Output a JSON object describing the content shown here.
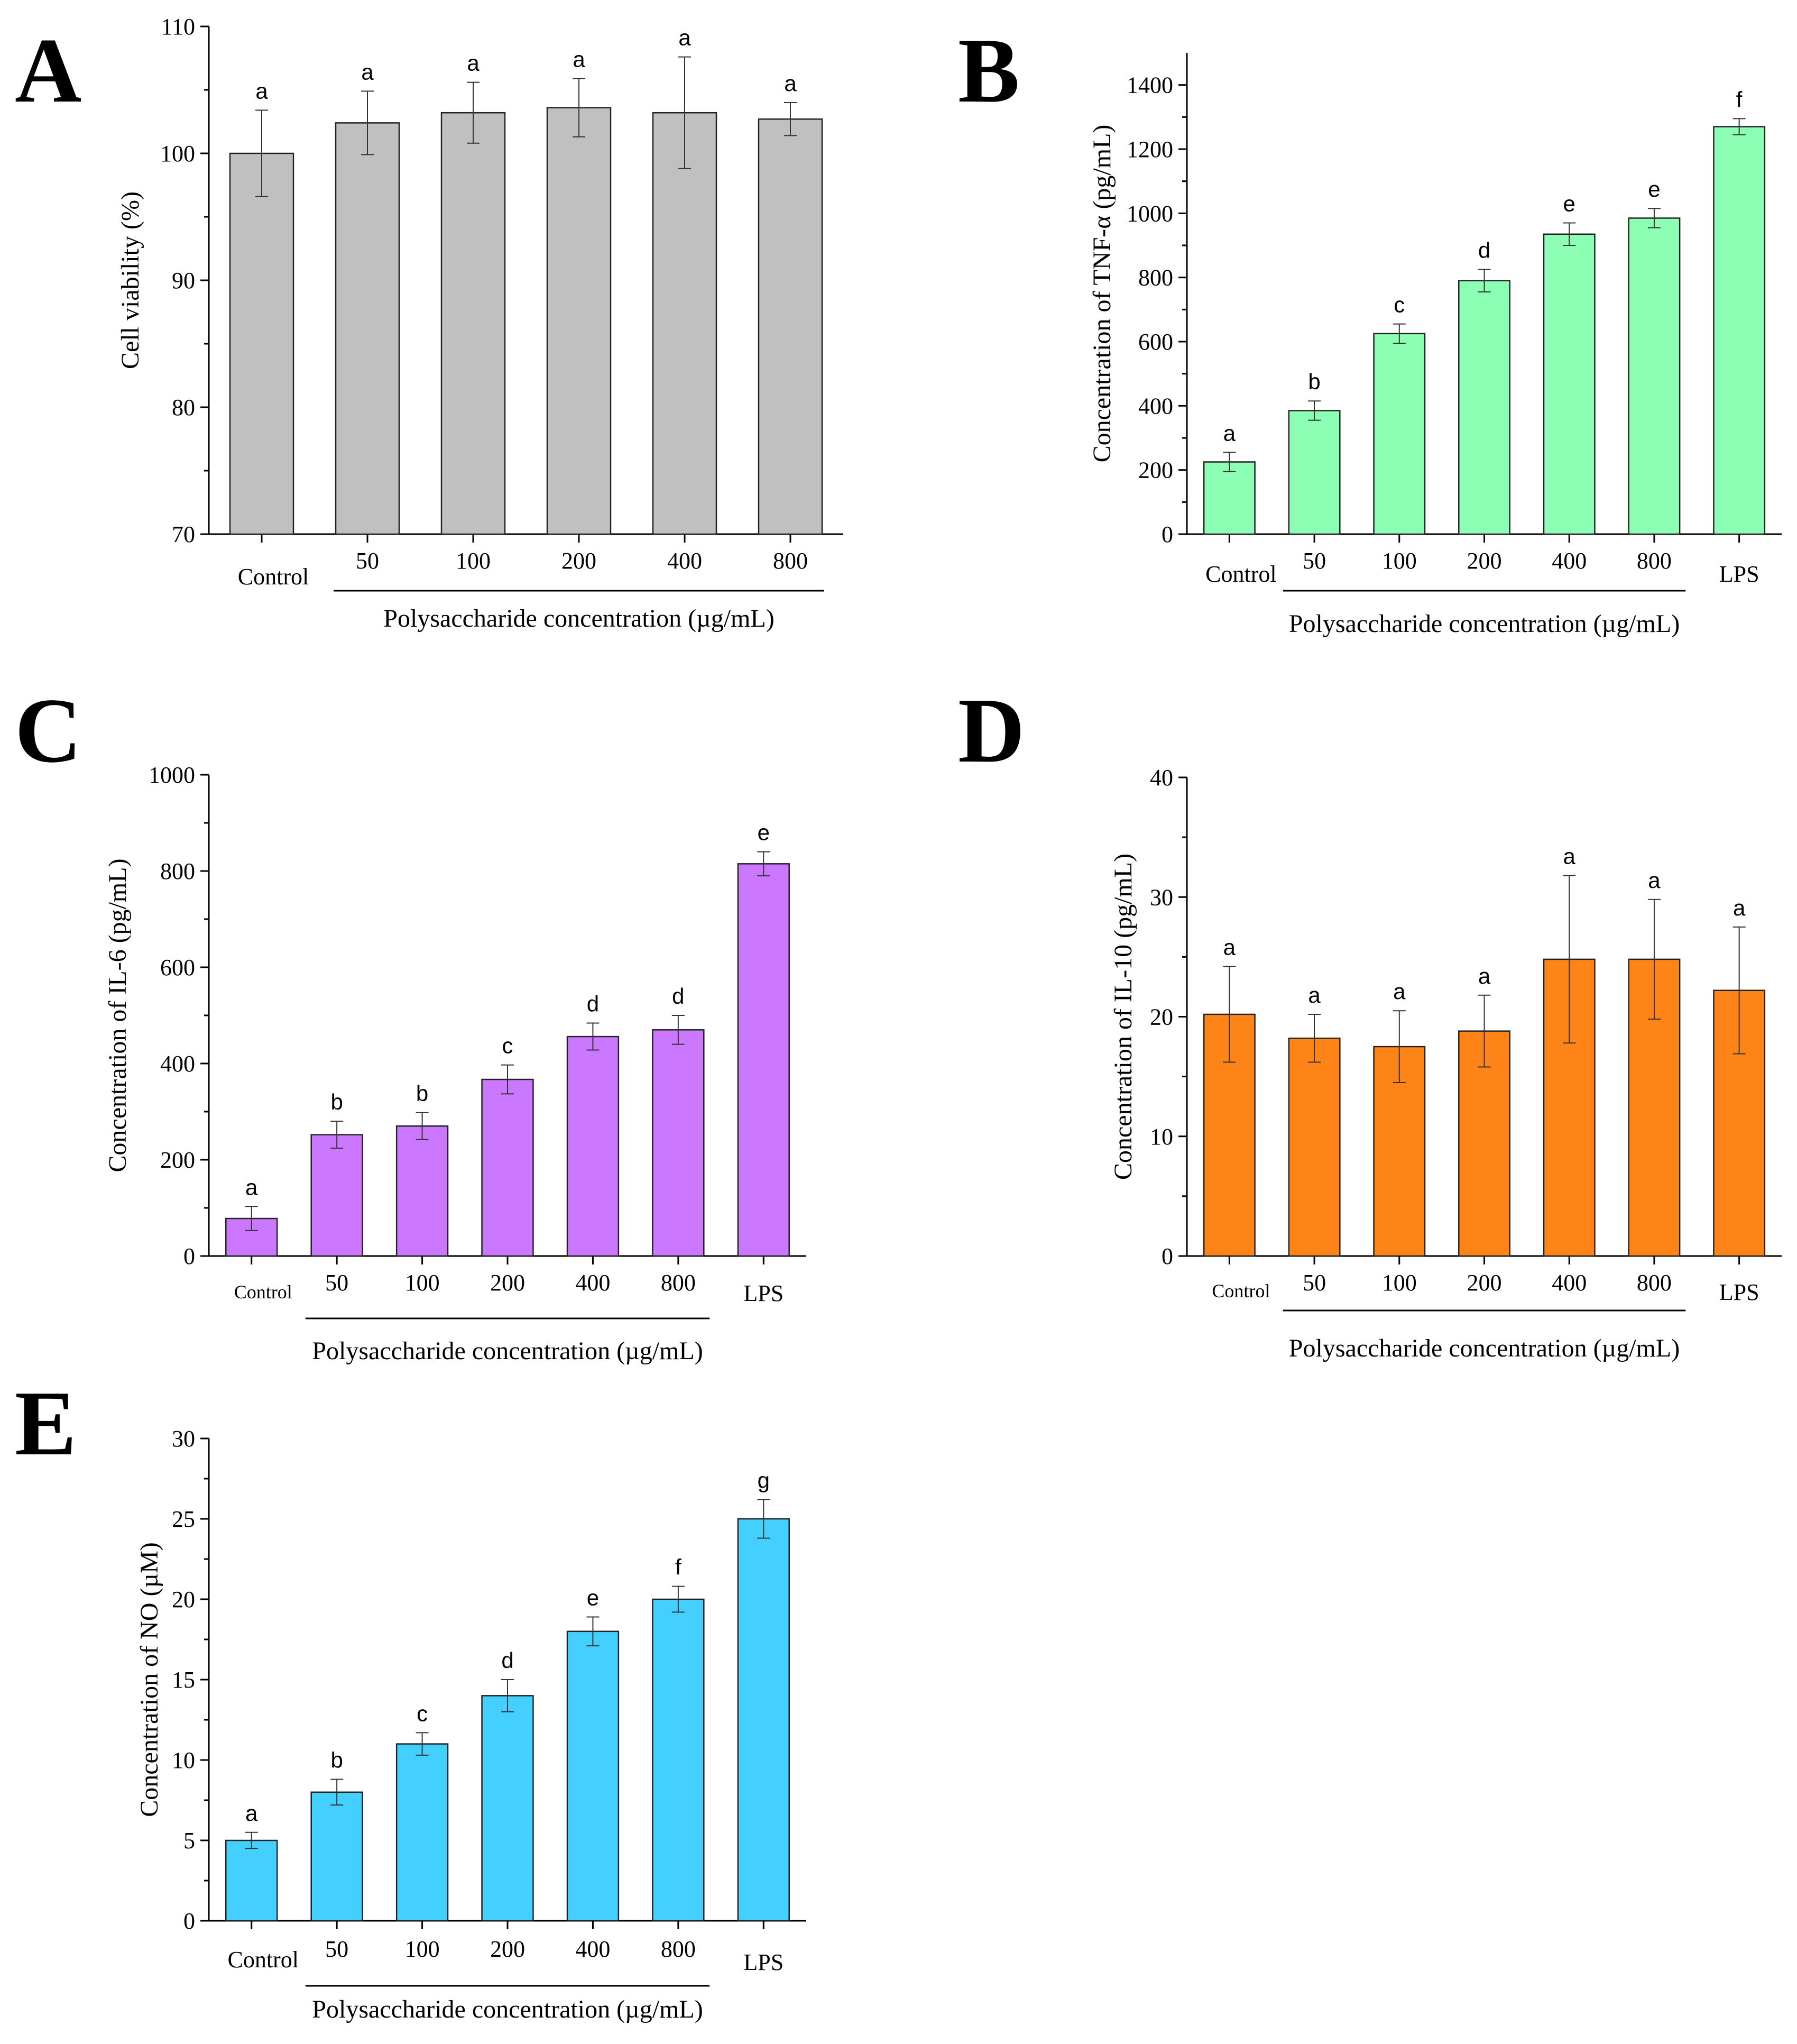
{
  "figure": {
    "panel_labels": [
      "A",
      "B",
      "C",
      "D",
      "E"
    ]
  },
  "chart_data": [
    {
      "panel": "A",
      "type": "bar",
      "title": "",
      "ylabel": "Cell viability (%)",
      "xlabel": "Polysaccharide concentration (µg/mL)",
      "categories": [
        "Control",
        "50",
        "100",
        "200",
        "400",
        "800"
      ],
      "values": [
        100.0,
        102.4,
        103.2,
        103.6,
        103.2,
        102.7
      ],
      "errors": [
        3.4,
        2.5,
        2.4,
        2.3,
        4.4,
        1.3
      ],
      "letters": [
        "a",
        "a",
        "a",
        "a",
        "a",
        "a"
      ],
      "ylim": [
        70,
        110
      ],
      "yticks": [
        70,
        80,
        90,
        100,
        110
      ],
      "color": "#c0c0c0",
      "bracket": [
        1,
        5
      ]
    },
    {
      "panel": "B",
      "type": "bar",
      "title": "",
      "ylabel": "Concentration of TNF-α (pg/mL)",
      "xlabel": "Polysaccharide concentration (µg/mL)",
      "categories": [
        "Control",
        "50",
        "100",
        "200",
        "400",
        "800",
        "LPS"
      ],
      "values": [
        225,
        385,
        625,
        790,
        935,
        985,
        1270
      ],
      "errors": [
        30,
        30,
        30,
        35,
        35,
        30,
        25
      ],
      "letters": [
        "a",
        "b",
        "c",
        "d",
        "e",
        "e",
        "f"
      ],
      "ylim": [
        0,
        1500
      ],
      "yticks": [
        0,
        200,
        400,
        600,
        800,
        1000,
        1200,
        1400
      ],
      "color": "#8cffb4",
      "bracket": [
        1,
        5
      ]
    },
    {
      "panel": "C",
      "type": "bar",
      "title": "",
      "ylabel": "Concentration of IL-6 (pg/mL)",
      "xlabel": "Polysaccharide concentration (µg/mL)",
      "categories": [
        "Control",
        "50",
        "100",
        "200",
        "400",
        "800",
        "LPS"
      ],
      "values": [
        78,
        252,
        270,
        367,
        456,
        470,
        815
      ],
      "errors": [
        25,
        28,
        28,
        30,
        28,
        30,
        25
      ],
      "letters": [
        "a",
        "b",
        "b",
        "c",
        "d",
        "d",
        "e"
      ],
      "ylim": [
        0,
        1000
      ],
      "yticks": [
        0,
        200,
        400,
        600,
        800,
        1000
      ],
      "color": "#cc77ff",
      "bracket": [
        1,
        5
      ]
    },
    {
      "panel": "D",
      "type": "bar",
      "title": "",
      "ylabel": "Concentration of IL-10 (pg/mL)",
      "xlabel": "Polysaccharide concentration (µg/mL)",
      "categories": [
        "Control",
        "50",
        "100",
        "200",
        "400",
        "800",
        "LPS"
      ],
      "values": [
        20.2,
        18.2,
        17.5,
        18.8,
        24.8,
        24.8,
        22.2
      ],
      "errors": [
        4.0,
        2.0,
        3.0,
        3.0,
        7.0,
        5.0,
        5.3
      ],
      "letters": [
        "a",
        "a",
        "a",
        "a",
        "a",
        "a",
        "a"
      ],
      "ylim": [
        0,
        40
      ],
      "yticks": [
        0,
        10,
        20,
        30,
        40
      ],
      "color": "#ff8418",
      "bracket": [
        1,
        5
      ]
    },
    {
      "panel": "E",
      "type": "bar",
      "title": "",
      "ylabel": "Concentration of NO (µM)",
      "xlabel": "Polysaccharide concentration (µg/mL)",
      "categories": [
        "Control",
        "50",
        "100",
        "200",
        "400",
        "800",
        "LPS"
      ],
      "values": [
        5.0,
        8.0,
        11.0,
        14.0,
        18.0,
        20.0,
        25.0
      ],
      "errors": [
        0.5,
        0.8,
        0.7,
        1.0,
        0.9,
        0.8,
        1.2
      ],
      "letters": [
        "a",
        "b",
        "c",
        "d",
        "e",
        "f",
        "g"
      ],
      "ylim": [
        0,
        30
      ],
      "yticks": [
        0,
        5,
        10,
        15,
        20,
        25,
        30
      ],
      "color": "#44d0ff",
      "bracket": [
        1,
        5
      ]
    }
  ]
}
